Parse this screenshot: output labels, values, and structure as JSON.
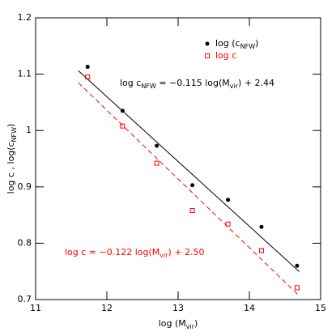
{
  "chart_data": {
    "type": "scatter",
    "x_label": [
      "log (M",
      "vir",
      ")"
    ],
    "y_label": [
      "log c  ,  log(c",
      "NFW",
      ")"
    ],
    "xlim": [
      11,
      15
    ],
    "ylim": [
      0.7,
      1.2
    ],
    "xticks": [
      11,
      12,
      13,
      14,
      15
    ],
    "yticks": [
      0.7,
      0.8,
      0.9,
      1,
      1.1,
      1.2
    ],
    "series": [
      {
        "name": [
          "log (c",
          "NFW",
          ")"
        ],
        "color": "#000000",
        "marker": "circle",
        "x": [
          11.73,
          12.22,
          12.7,
          13.2,
          13.7,
          14.17,
          14.67
        ],
        "values": [
          1.113,
          1.035,
          0.973,
          0.903,
          0.877,
          0.829,
          0.76
        ]
      },
      {
        "name": [
          "log c"
        ],
        "color": "#ff0000",
        "marker": "square",
        "x": [
          11.73,
          12.22,
          12.7,
          13.2,
          13.7,
          14.17,
          14.67
        ],
        "values": [
          1.095,
          1.008,
          0.942,
          0.858,
          0.834,
          0.787,
          0.721
        ]
      }
    ],
    "fits": [
      {
        "color": "#000000",
        "dash": false,
        "x": [
          11.6,
          14.7
        ],
        "values": [
          1.106,
          0.7495
        ]
      },
      {
        "color": "#ff0000",
        "dash": true,
        "x": [
          11.6,
          14.7
        ],
        "values": [
          1.0848,
          0.7066
        ]
      }
    ],
    "annotations": [
      {
        "color": "#000000",
        "text": [
          "log c",
          "NFW",
          " = −0.115 log(M",
          "vir",
          ") + 2.44"
        ]
      },
      {
        "color": "#ff0000",
        "text": [
          "log c = −0.122 log(M",
          "vir",
          ") + 2.50"
        ]
      }
    ]
  }
}
